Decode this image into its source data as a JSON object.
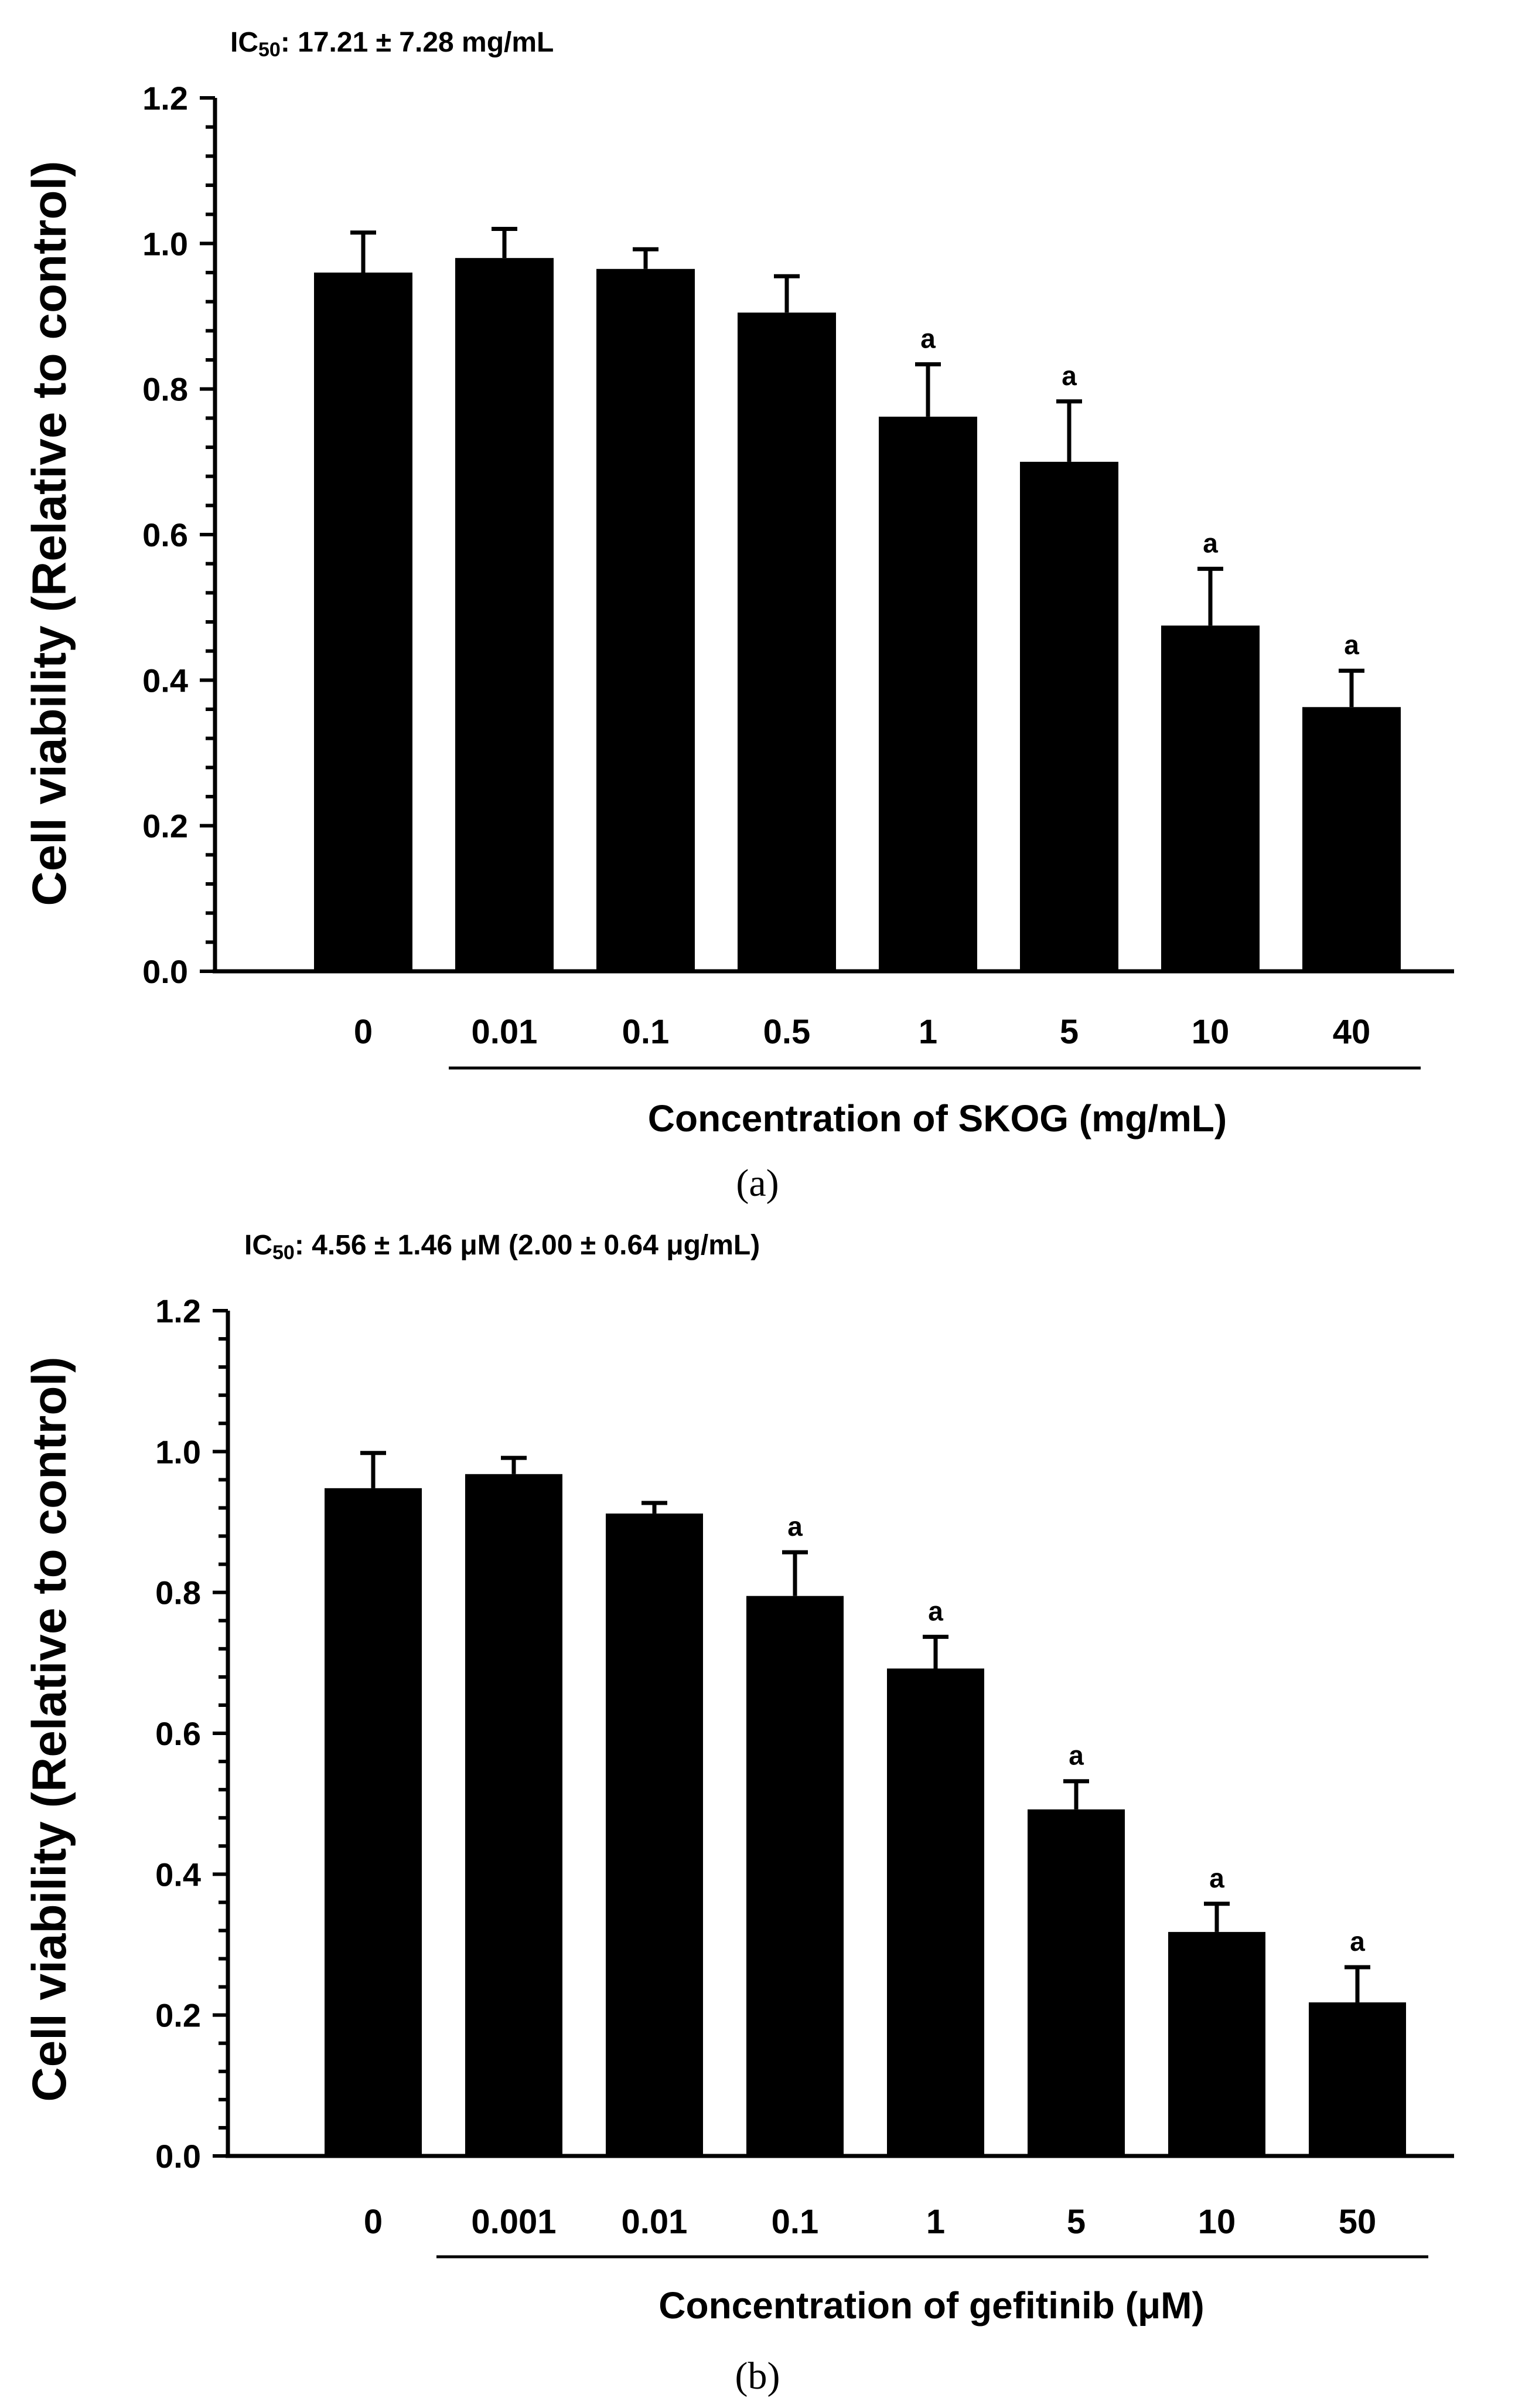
{
  "chart_data": [
    {
      "type": "bar",
      "ic50_label": "IC",
      "ic50_sub": "50",
      "ic50_value": ": 17.21 ± 7.28 mg/mL",
      "xlabel": "Concentration of SKOG (mg/mL)",
      "ylabel": "Cell viability (Relative to control)",
      "panel_label": "(a)",
      "categories": [
        "0",
        "0.01",
        "0.1",
        "0.5",
        "1",
        "5",
        "10",
        "40"
      ],
      "values": [
        0.96,
        0.98,
        0.965,
        0.905,
        0.762,
        0.7,
        0.475,
        0.363
      ],
      "errors": [
        0.055,
        0.04,
        0.027,
        0.05,
        0.072,
        0.083,
        0.078,
        0.05
      ],
      "significance": [
        "",
        "",
        "",
        "",
        "a",
        "a",
        "a",
        "a"
      ],
      "ylim": [
        0,
        1.2
      ],
      "yticks": [
        "0.0",
        "0.2",
        "0.4",
        "0.6",
        "0.8",
        "1.0",
        "1.2"
      ]
    },
    {
      "type": "bar",
      "ic50_label": "IC",
      "ic50_sub": "50",
      "ic50_value": ": 4.56 ± 1.46 μM (2.00 ± 0.64 μg/mL)",
      "xlabel": "Concentration of gefitinib (μM)",
      "ylabel": "Cell viability (Relative to control)",
      "panel_label": "(b)",
      "categories": [
        "0",
        "0.001",
        "0.01",
        "0.1",
        "1",
        "5",
        "10",
        "50"
      ],
      "values": [
        0.948,
        0.968,
        0.912,
        0.795,
        0.692,
        0.492,
        0.318,
        0.218
      ],
      "errors": [
        0.05,
        0.023,
        0.015,
        0.062,
        0.045,
        0.04,
        0.04,
        0.05
      ],
      "significance": [
        "",
        "",
        "",
        "a",
        "a",
        "a",
        "a",
        "a"
      ],
      "ylim": [
        0,
        1.2
      ],
      "yticks": [
        "0.0",
        "0.2",
        "0.4",
        "0.6",
        "0.8",
        "1.0",
        "1.2"
      ]
    }
  ]
}
